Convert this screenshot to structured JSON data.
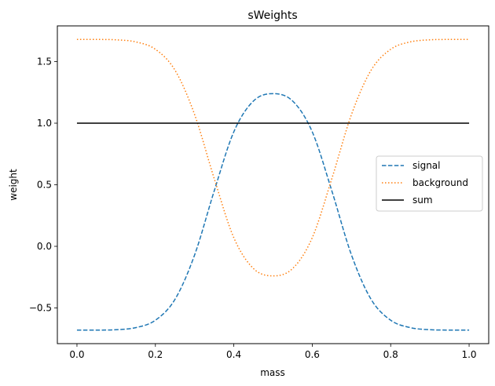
{
  "chart_data": {
    "type": "line",
    "title": "sWeights",
    "xlabel": "mass",
    "ylabel": "weight",
    "xlim": [
      -0.05,
      1.05
    ],
    "ylim": [
      -0.79,
      1.79
    ],
    "xticks": [
      0.0,
      0.2,
      0.4,
      0.6,
      0.8,
      1.0
    ],
    "xtick_labels": [
      "0.0",
      "0.2",
      "0.4",
      "0.6",
      "0.8",
      "1.0"
    ],
    "yticks": [
      -0.5,
      0.0,
      0.5,
      1.0,
      1.5
    ],
    "ytick_labels": [
      "−0.5",
      "0.0",
      "0.5",
      "1.0",
      "1.5"
    ],
    "grid": false,
    "legend_position": "center-right",
    "x": [
      0.0,
      0.05,
      0.1,
      0.15,
      0.2,
      0.25,
      0.3,
      0.35,
      0.4,
      0.45,
      0.5,
      0.55,
      0.6,
      0.65,
      0.7,
      0.75,
      0.8,
      0.85,
      0.9,
      0.95,
      1.0
    ],
    "series": [
      {
        "name": "signal",
        "color": "#1f77b4",
        "style": "dashed",
        "values": [
          -0.68,
          -0.68,
          -0.677,
          -0.66,
          -0.6,
          -0.43,
          -0.07,
          0.45,
          0.93,
          1.18,
          1.24,
          1.18,
          0.93,
          0.45,
          -0.07,
          -0.43,
          -0.6,
          -0.66,
          -0.677,
          -0.68,
          -0.68
        ]
      },
      {
        "name": "background",
        "color": "#ff7f0e",
        "style": "dotted",
        "values": [
          1.68,
          1.68,
          1.677,
          1.66,
          1.6,
          1.43,
          1.07,
          0.55,
          0.07,
          -0.18,
          -0.24,
          -0.18,
          0.07,
          0.55,
          1.07,
          1.43,
          1.6,
          1.66,
          1.677,
          1.68,
          1.68
        ]
      },
      {
        "name": "sum",
        "color": "#000000",
        "style": "solid",
        "values": [
          1.0,
          1.0,
          1.0,
          1.0,
          1.0,
          1.0,
          1.0,
          1.0,
          1.0,
          1.0,
          1.0,
          1.0,
          1.0,
          1.0,
          1.0,
          1.0,
          1.0,
          1.0,
          1.0,
          1.0,
          1.0
        ]
      }
    ]
  }
}
